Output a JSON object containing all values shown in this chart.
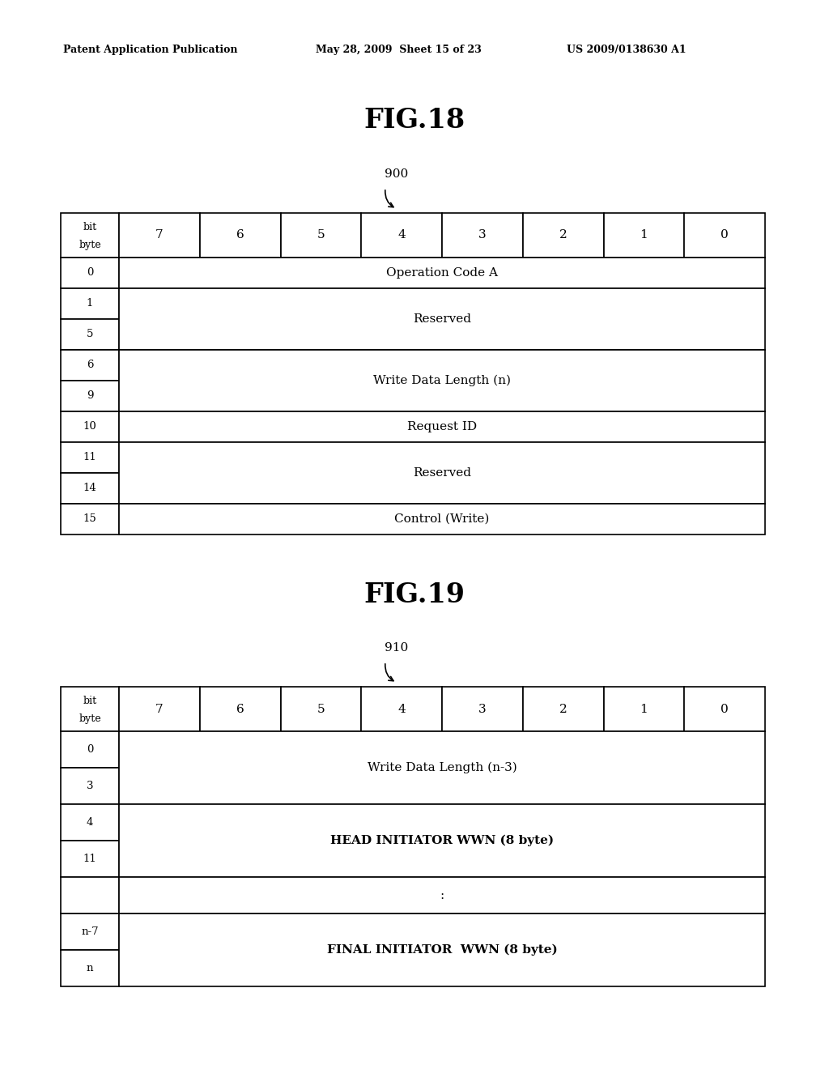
{
  "background_color": "#ffffff",
  "header_left": "Patent Application Publication",
  "header_mid": "May 28, 2009  Sheet 15 of 23",
  "header_right": "US 2009/0138630 A1",
  "fig18": {
    "title": "FIG.18",
    "label": "900",
    "bit_labels": [
      "7",
      "6",
      "5",
      "4",
      "3",
      "2",
      "1",
      "0"
    ],
    "rows": [
      {
        "byte": "0",
        "content": "Operation Code A",
        "n_sub": 1
      },
      {
        "byte": "1",
        "content": "Reserved",
        "n_sub": 2,
        "sub_bytes": [
          "1",
          "5"
        ]
      },
      {
        "byte": "6",
        "content": "Write Data Length (n)",
        "n_sub": 2,
        "sub_bytes": [
          "6",
          "9"
        ]
      },
      {
        "byte": "10",
        "content": "Request ID",
        "n_sub": 1
      },
      {
        "byte": "11",
        "content": "Reserved",
        "n_sub": 2,
        "sub_bytes": [
          "11",
          "14"
        ]
      },
      {
        "byte": "15",
        "content": "Control (Write)",
        "n_sub": 1
      }
    ]
  },
  "fig19": {
    "title": "FIG.19",
    "label": "910",
    "bit_labels": [
      "7",
      "6",
      "5",
      "4",
      "3",
      "2",
      "1",
      "0"
    ],
    "rows": [
      {
        "byte": "0",
        "content": "Write Data Length (n-3)",
        "n_sub": 2,
        "sub_bytes": [
          "0",
          "3"
        ]
      },
      {
        "byte": "4",
        "content": "HEAD INITIATOR WWN (8 byte)",
        "n_sub": 2,
        "sub_bytes": [
          "4",
          "11"
        ]
      },
      {
        "byte": "",
        "content": ":",
        "n_sub": 1
      },
      {
        "byte": "n-7",
        "content": "FINAL INITIATOR  WWN (8 byte)",
        "n_sub": 2,
        "sub_bytes": [
          "n-7",
          "n"
        ]
      }
    ]
  }
}
